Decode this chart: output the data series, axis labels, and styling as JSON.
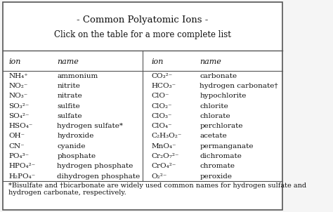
{
  "title_line1": "- Common Polyatomic Ions -",
  "title_line2": "Click on the table for a more complete list",
  "col_headers": [
    "ion",
    "name",
    "ion",
    "name"
  ],
  "left_ions": [
    "NH₄⁺",
    "NO₂⁻",
    "NO₃⁻",
    "SO₃²⁻",
    "SO₄²⁻",
    "HSO₄⁻",
    "OH⁻",
    "CN⁻",
    "PO₄³⁻",
    "HPO₄²⁻",
    "H₂PO₄⁻"
  ],
  "left_names": [
    "ammonium",
    "nitrite",
    "nitrate",
    "sulfite",
    "sulfate",
    "hydrogen sulfate*",
    "hydroxide",
    "cyanide",
    "phosphate",
    "hydrogen phosphate",
    "dihydrogen phosphate"
  ],
  "right_ions": [
    "CO₃²⁻",
    "HCO₃⁻",
    "ClO⁻",
    "ClO₂⁻",
    "ClO₃⁻",
    "ClO₄⁻",
    "C₂H₃O₂⁻",
    "MnO₄⁻",
    "Cr₂O₇²⁻",
    "CrO₄²⁻",
    "O₂²⁻"
  ],
  "right_names": [
    "carbonate",
    "hydrogen carbonate†",
    "hypochlorite",
    "chlorite",
    "chlorate",
    "perchlorate",
    "acetate",
    "permanganate",
    "dichromate",
    "chromate",
    "peroxide"
  ],
  "footnote": "*Bisulfate and †bicarbonate are widely used common names for hydrogen sulfate and\nhydrogen carbonate, respectively.",
  "bg_color": "#f5f5f5",
  "border_color": "#555555",
  "text_color": "#111111",
  "font_size": 7.5,
  "header_font_size": 8.0,
  "title_font_size": 9.5
}
